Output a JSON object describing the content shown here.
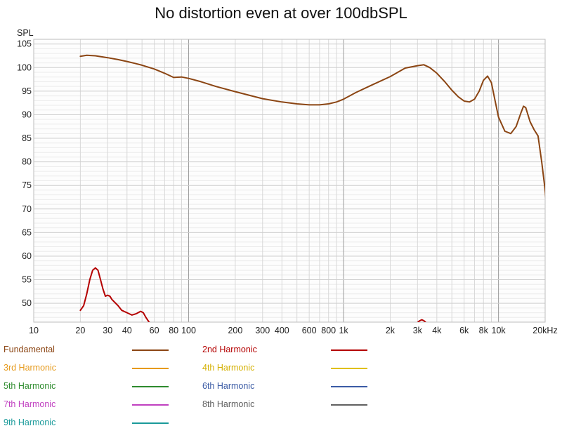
{
  "chart_data": {
    "type": "line",
    "title": "No distortion even at over 100dbSPL",
    "ylabel": "SPL",
    "xscale": "log",
    "xlim": [
      10,
      20000
    ],
    "ylim": [
      46,
      106
    ],
    "grid": true,
    "legend_position": "bottom",
    "y_ticks": [
      50,
      55,
      60,
      65,
      70,
      75,
      80,
      85,
      90,
      95,
      100,
      105
    ],
    "x_ticks": [
      {
        "v": 10,
        "label": "10"
      },
      {
        "v": 20,
        "label": "20"
      },
      {
        "v": 30,
        "label": "30"
      },
      {
        "v": 40,
        "label": "40"
      },
      {
        "v": 60,
        "label": "60"
      },
      {
        "v": 80,
        "label": "80"
      },
      {
        "v": 100,
        "label": "100"
      },
      {
        "v": 200,
        "label": "200"
      },
      {
        "v": 300,
        "label": "300"
      },
      {
        "v": 400,
        "label": "400"
      },
      {
        "v": 600,
        "label": "600"
      },
      {
        "v": 800,
        "label": "800"
      },
      {
        "v": 1000,
        "label": "1k"
      },
      {
        "v": 2000,
        "label": "2k"
      },
      {
        "v": 3000,
        "label": "3k"
      },
      {
        "v": 4000,
        "label": "4k"
      },
      {
        "v": 6000,
        "label": "6k"
      },
      {
        "v": 8000,
        "label": "8k"
      },
      {
        "v": 10000,
        "label": "10k"
      },
      {
        "v": 20000,
        "label": "20kHz"
      }
    ],
    "series": [
      {
        "name": "Fundamental",
        "color": "#8B4513",
        "points": [
          [
            20,
            102.4
          ],
          [
            22,
            102.6
          ],
          [
            25,
            102.5
          ],
          [
            30,
            102.1
          ],
          [
            35,
            101.7
          ],
          [
            40,
            101.3
          ],
          [
            45,
            100.9
          ],
          [
            50,
            100.5
          ],
          [
            60,
            99.7
          ],
          [
            70,
            98.8
          ],
          [
            80,
            97.9
          ],
          [
            90,
            98.0
          ],
          [
            100,
            97.7
          ],
          [
            120,
            97.0
          ],
          [
            150,
            96.0
          ],
          [
            200,
            94.9
          ],
          [
            300,
            93.4
          ],
          [
            400,
            92.7
          ],
          [
            500,
            92.3
          ],
          [
            600,
            92.1
          ],
          [
            700,
            92.1
          ],
          [
            800,
            92.3
          ],
          [
            900,
            92.7
          ],
          [
            1000,
            93.3
          ],
          [
            1200,
            94.7
          ],
          [
            1500,
            96.2
          ],
          [
            2000,
            98.1
          ],
          [
            2500,
            99.9
          ],
          [
            3000,
            100.4
          ],
          [
            3300,
            100.6
          ],
          [
            3600,
            100.0
          ],
          [
            4000,
            98.8
          ],
          [
            4500,
            97.0
          ],
          [
            5000,
            95.2
          ],
          [
            5500,
            93.8
          ],
          [
            6000,
            92.9
          ],
          [
            6500,
            92.7
          ],
          [
            7000,
            93.3
          ],
          [
            7500,
            95.0
          ],
          [
            8000,
            97.3
          ],
          [
            8500,
            98.2
          ],
          [
            9000,
            96.8
          ],
          [
            9500,
            93.0
          ],
          [
            10000,
            89.5
          ],
          [
            11000,
            86.5
          ],
          [
            12000,
            86.0
          ],
          [
            13000,
            87.5
          ],
          [
            14000,
            90.5
          ],
          [
            14500,
            91.8
          ],
          [
            15000,
            91.5
          ],
          [
            16000,
            88.5
          ],
          [
            17000,
            86.8
          ],
          [
            18000,
            85.5
          ],
          [
            19000,
            80.0
          ],
          [
            20000,
            74.0
          ],
          [
            21000,
            66.0
          ]
        ]
      },
      {
        "name": "2nd Harmonic",
        "color": "#B40000",
        "points": [
          [
            20,
            48.5
          ],
          [
            21,
            49.5
          ],
          [
            22,
            52.0
          ],
          [
            23,
            55.0
          ],
          [
            24,
            57.0
          ],
          [
            25,
            57.5
          ],
          [
            26,
            57.0
          ],
          [
            27,
            55.0
          ],
          [
            28,
            53.0
          ],
          [
            29,
            51.5
          ],
          [
            30,
            51.7
          ],
          [
            31,
            51.5
          ],
          [
            32,
            50.8
          ],
          [
            35,
            49.5
          ],
          [
            37,
            48.5
          ],
          [
            40,
            48.0
          ],
          [
            43,
            47.5
          ],
          [
            46,
            47.8
          ],
          [
            49,
            48.3
          ],
          [
            51,
            48.0
          ],
          [
            53,
            47.0
          ],
          [
            55,
            46.2
          ],
          [
            57,
            45.5
          ]
        ]
      },
      {
        "name": "2nd Harmonic",
        "color": "#B40000",
        "points": [
          [
            3000,
            45.9
          ],
          [
            3100,
            46.3
          ],
          [
            3200,
            46.5
          ],
          [
            3300,
            46.3
          ],
          [
            3400,
            45.9
          ]
        ]
      }
    ],
    "legend": [
      {
        "name": "Fundamental",
        "color": "#8B4513",
        "text_color": "#8B4513"
      },
      {
        "name": "2nd Harmonic",
        "color": "#B40000",
        "text_color": "#B40000"
      },
      {
        "name": "3rd Harmonic",
        "color": "#E69A1C",
        "text_color": "#E69A1C"
      },
      {
        "name": "4th Harmonic",
        "color": "#E0C000",
        "text_color": "#D4B000"
      },
      {
        "name": "5th Harmonic",
        "color": "#2E8B2E",
        "text_color": "#2E8B2E"
      },
      {
        "name": "6th Harmonic",
        "color": "#3B5BA5",
        "text_color": "#3B5BA5"
      },
      {
        "name": "7th Harmonic",
        "color": "#C040C0",
        "text_color": "#C040C0"
      },
      {
        "name": "8th Harmonic",
        "color": "#606060",
        "text_color": "#606060"
      },
      {
        "name": "9th Harmonic",
        "color": "#1A9A9A",
        "text_color": "#1A9A9A"
      }
    ]
  }
}
